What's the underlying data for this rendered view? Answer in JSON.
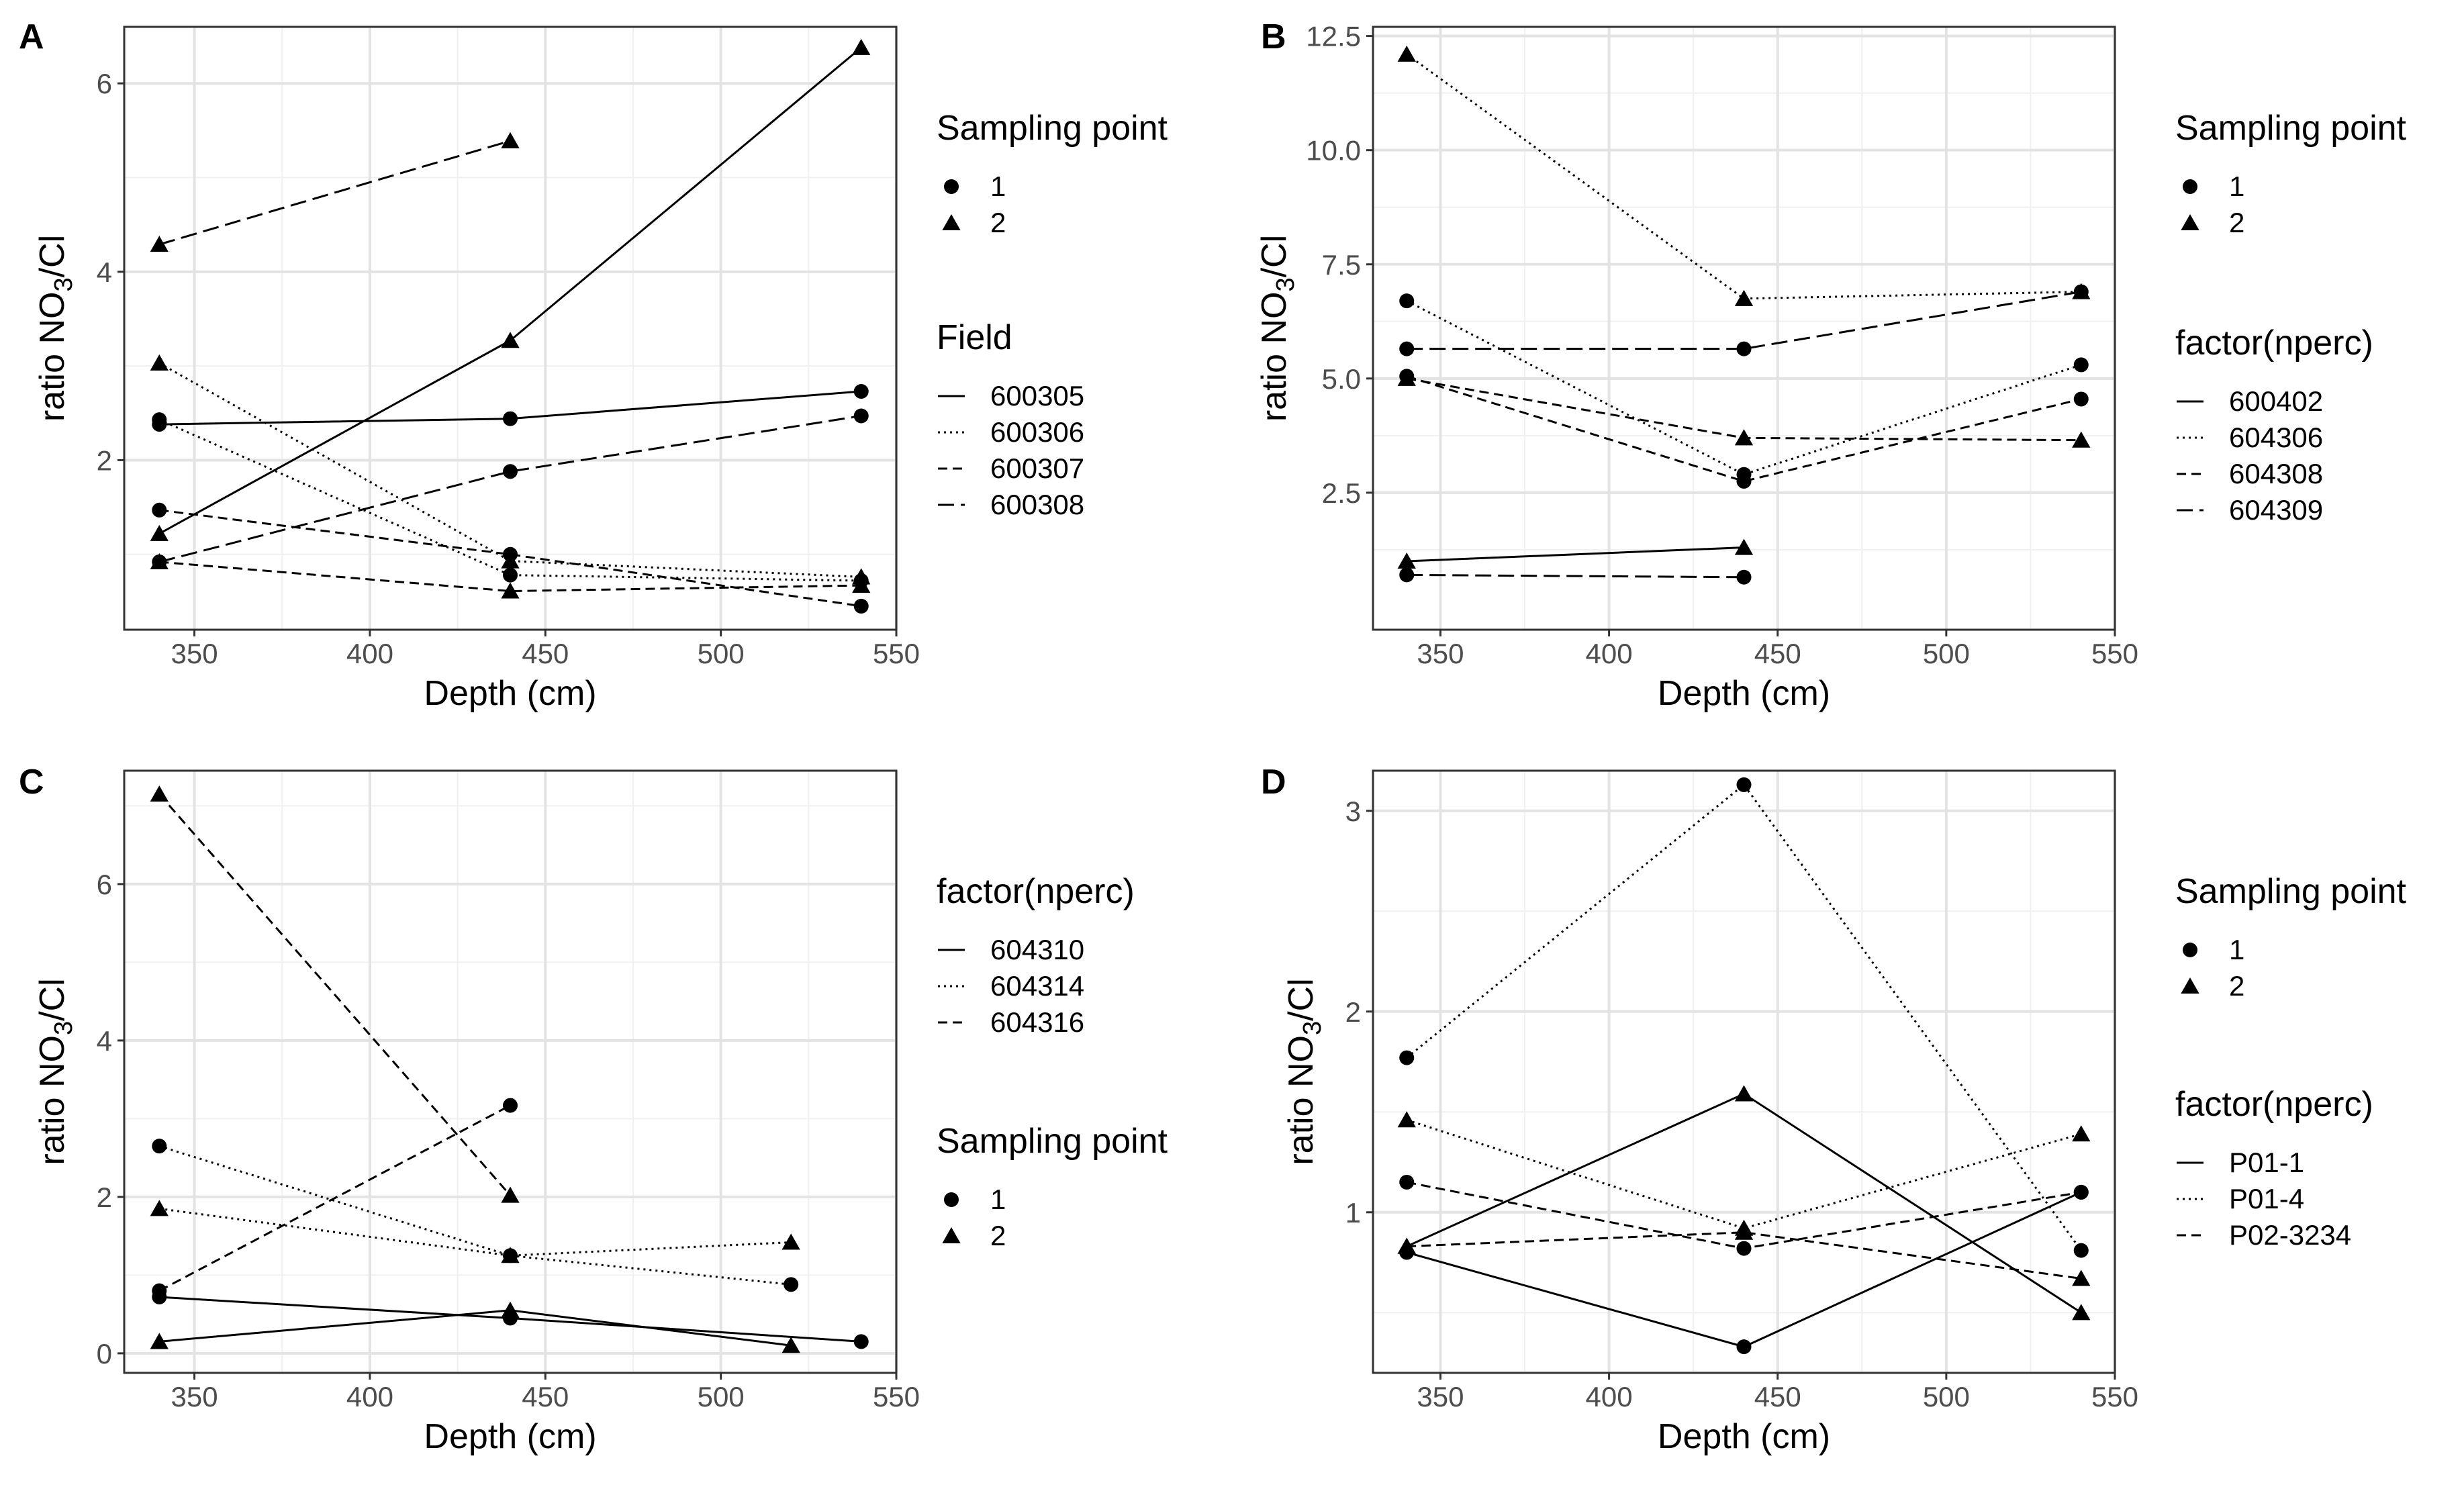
{
  "figure": {
    "panel_labels": [
      "A",
      "B",
      "C",
      "D"
    ]
  },
  "chart_data": [
    {
      "panel": "A",
      "type": "line",
      "xlabel": "Depth (cm)",
      "ylabel": "ratio NO3/Cl",
      "xlim": [
        330,
        550
      ],
      "ylim": [
        0.2,
        6.6
      ],
      "xticks": [
        350,
        400,
        450,
        500,
        550
      ],
      "yticks": [
        2,
        4,
        6
      ],
      "grid": true,
      "legends": [
        {
          "title": "Sampling point",
          "kind": "shape",
          "items": [
            {
              "label": "1",
              "shape": "circle"
            },
            {
              "label": "2",
              "shape": "triangle"
            }
          ]
        },
        {
          "title": "Field",
          "kind": "linetype",
          "items": [
            {
              "label": "600305",
              "linetype": "solid"
            },
            {
              "label": "600306",
              "linetype": "dotted"
            },
            {
              "label": "600307",
              "linetype": "dashed"
            },
            {
              "label": "600308",
              "linetype": "longdash"
            }
          ]
        }
      ],
      "series": [
        {
          "field": "600305",
          "point": "1",
          "linetype": "solid",
          "shape": "circle",
          "x": [
            340,
            440,
            540
          ],
          "y": [
            2.38,
            2.44,
            2.73
          ]
        },
        {
          "field": "600305",
          "point": "2",
          "linetype": "solid",
          "shape": "triangle",
          "x": [
            340,
            440,
            540
          ],
          "y": [
            1.22,
            3.27,
            6.38
          ]
        },
        {
          "field": "600306",
          "point": "1",
          "linetype": "dotted",
          "shape": "circle",
          "x": [
            340,
            440,
            540
          ],
          "y": [
            2.43,
            0.78,
            0.72
          ]
        },
        {
          "field": "600306",
          "point": "2",
          "linetype": "dotted",
          "shape": "triangle",
          "x": [
            340,
            440,
            540
          ],
          "y": [
            3.03,
            0.93,
            0.76
          ]
        },
        {
          "field": "600307",
          "point": "1",
          "linetype": "dashed",
          "shape": "circle",
          "x": [
            340,
            440,
            540
          ],
          "y": [
            1.47,
            1.0,
            0.45
          ]
        },
        {
          "field": "600307",
          "point": "2",
          "linetype": "dashed",
          "shape": "triangle",
          "x": [
            340,
            440,
            540
          ],
          "y": [
            0.92,
            0.61,
            0.67
          ]
        },
        {
          "field": "600308",
          "point": "1",
          "linetype": "longdash",
          "shape": "circle",
          "x": [
            340,
            440,
            540
          ],
          "y": [
            0.92,
            1.88,
            2.47
          ]
        },
        {
          "field": "600308",
          "point": "2",
          "linetype": "longdash",
          "shape": "triangle",
          "x": [
            340,
            440
          ],
          "y": [
            4.29,
            5.39
          ]
        }
      ]
    },
    {
      "panel": "B",
      "type": "line",
      "xlabel": "Depth (cm)",
      "ylabel": "ratio NO3/Cl",
      "xlim": [
        330,
        550
      ],
      "ylim": [
        -0.5,
        12.7
      ],
      "xticks": [
        350,
        400,
        450,
        500,
        550
      ],
      "yticks": [
        2.5,
        5.0,
        7.5,
        10.0,
        12.5
      ],
      "ytick_labels": [
        "2.5",
        "5.0",
        "7.5",
        "10.0",
        "12.5"
      ],
      "grid": true,
      "legends": [
        {
          "title": "Sampling point",
          "kind": "shape",
          "items": [
            {
              "label": "1",
              "shape": "circle"
            },
            {
              "label": "2",
              "shape": "triangle"
            }
          ]
        },
        {
          "title": "factor(nperc)",
          "kind": "linetype",
          "items": [
            {
              "label": "600402",
              "linetype": "solid"
            },
            {
              "label": "604306",
              "linetype": "dotted"
            },
            {
              "label": "604308",
              "linetype": "dashed"
            },
            {
              "label": "604309",
              "linetype": "longdash"
            }
          ]
        }
      ],
      "series": [
        {
          "field": "600402",
          "point": "2",
          "linetype": "solid",
          "shape": "triangle",
          "x": [
            340,
            440
          ],
          "y": [
            1.0,
            1.3
          ]
        },
        {
          "field": "604306",
          "point": "1",
          "linetype": "dotted",
          "shape": "circle",
          "x": [
            340,
            440,
            540
          ],
          "y": [
            6.7,
            2.9,
            5.3
          ]
        },
        {
          "field": "604306",
          "point": "2",
          "linetype": "dotted",
          "shape": "triangle",
          "x": [
            340,
            440,
            540
          ],
          "y": [
            12.1,
            6.75,
            6.9
          ]
        },
        {
          "field": "604308",
          "point": "1",
          "linetype": "dashed",
          "shape": "circle",
          "x": [
            340,
            440,
            540
          ],
          "y": [
            5.05,
            2.75,
            4.55
          ]
        },
        {
          "field": "604308",
          "point": "2",
          "linetype": "dashed",
          "shape": "triangle",
          "x": [
            340,
            440,
            540
          ],
          "y": [
            5.0,
            3.7,
            3.65
          ]
        },
        {
          "field": "604309",
          "point": "1",
          "linetype": "longdash",
          "shape": "circle",
          "x": [
            340,
            440,
            540
          ],
          "y": [
            5.65,
            5.65,
            6.9
          ]
        },
        {
          "field": "604309",
          "point": "1b",
          "linetype": "longdash",
          "shape": "circle",
          "x": [
            340,
            440
          ],
          "y": [
            0.7,
            0.65
          ]
        }
      ]
    },
    {
      "panel": "C",
      "type": "line",
      "xlabel": "Depth (cm)",
      "ylabel": "ratio NO3/Cl",
      "xlim": [
        330,
        550
      ],
      "ylim": [
        -0.25,
        7.45
      ],
      "xticks": [
        350,
        400,
        450,
        500,
        550
      ],
      "yticks": [
        0,
        2,
        4,
        6
      ],
      "grid": true,
      "legends": [
        {
          "title": "factor(nperc)",
          "kind": "linetype",
          "items": [
            {
              "label": "604310",
              "linetype": "solid"
            },
            {
              "label": "604314",
              "linetype": "dotted"
            },
            {
              "label": "604316",
              "linetype": "dashed"
            }
          ]
        },
        {
          "title": "Sampling point",
          "kind": "shape",
          "items": [
            {
              "label": "1",
              "shape": "circle"
            },
            {
              "label": "2",
              "shape": "triangle"
            }
          ]
        }
      ],
      "series": [
        {
          "field": "604310",
          "point": "1",
          "linetype": "solid",
          "shape": "circle",
          "x": [
            340,
            440,
            540
          ],
          "y": [
            0.72,
            0.45,
            0.15
          ]
        },
        {
          "field": "604310",
          "point": "2",
          "linetype": "solid",
          "shape": "triangle",
          "x": [
            340,
            440,
            520
          ],
          "y": [
            0.15,
            0.55,
            0.1
          ]
        },
        {
          "field": "604314",
          "point": "1",
          "linetype": "dotted",
          "shape": "circle",
          "x": [
            340,
            440,
            520
          ],
          "y": [
            2.65,
            1.25,
            0.88
          ]
        },
        {
          "field": "604314",
          "point": "2",
          "linetype": "dotted",
          "shape": "triangle",
          "x": [
            340,
            440,
            520
          ],
          "y": [
            1.85,
            1.25,
            1.42
          ]
        },
        {
          "field": "604316",
          "point": "1",
          "linetype": "dashed",
          "shape": "circle",
          "x": [
            340,
            440
          ],
          "y": [
            0.8,
            3.17
          ]
        },
        {
          "field": "604316",
          "point": "2",
          "linetype": "dashed",
          "shape": "triangle",
          "x": [
            340,
            440
          ],
          "y": [
            7.15,
            2.02
          ]
        }
      ]
    },
    {
      "panel": "D",
      "type": "line",
      "xlabel": "Depth (cm)",
      "ylabel": "ratio NO3/Cl",
      "xlim": [
        330,
        550
      ],
      "ylim": [
        0.2,
        3.2
      ],
      "xticks": [
        350,
        400,
        450,
        500,
        550
      ],
      "yticks": [
        1,
        2,
        3
      ],
      "grid": true,
      "legends": [
        {
          "title": "Sampling point",
          "kind": "shape",
          "items": [
            {
              "label": "1",
              "shape": "circle"
            },
            {
              "label": "2",
              "shape": "triangle"
            }
          ]
        },
        {
          "title": "factor(nperc)",
          "kind": "linetype",
          "items": [
            {
              "label": "P01-1",
              "linetype": "solid"
            },
            {
              "label": "P01-4",
              "linetype": "dotted"
            },
            {
              "label": "P02-3234",
              "linetype": "dashed"
            }
          ]
        }
      ],
      "series": [
        {
          "field": "P01-1",
          "point": "1",
          "linetype": "solid",
          "shape": "circle",
          "x": [
            340,
            440,
            540
          ],
          "y": [
            0.8,
            0.33,
            1.1
          ]
        },
        {
          "field": "P01-1",
          "point": "2",
          "linetype": "solid",
          "shape": "triangle",
          "x": [
            340,
            440,
            540
          ],
          "y": [
            0.83,
            1.59,
            0.5
          ]
        },
        {
          "field": "P01-4",
          "point": "1",
          "linetype": "dotted",
          "shape": "circle",
          "x": [
            340,
            440,
            540
          ],
          "y": [
            1.77,
            3.13,
            0.81
          ]
        },
        {
          "field": "P01-4",
          "point": "2",
          "linetype": "dotted",
          "shape": "triangle",
          "x": [
            340,
            440,
            540
          ],
          "y": [
            1.46,
            0.92,
            1.39
          ]
        },
        {
          "field": "P02-3234",
          "point": "1",
          "linetype": "dashed",
          "shape": "circle",
          "x": [
            340,
            440,
            540
          ],
          "y": [
            1.15,
            0.82,
            1.1
          ]
        },
        {
          "field": "P02-3234",
          "point": "2",
          "linetype": "dashed",
          "shape": "triangle",
          "x": [
            340,
            440,
            540
          ],
          "y": [
            0.83,
            0.9,
            0.67
          ]
        }
      ]
    }
  ]
}
